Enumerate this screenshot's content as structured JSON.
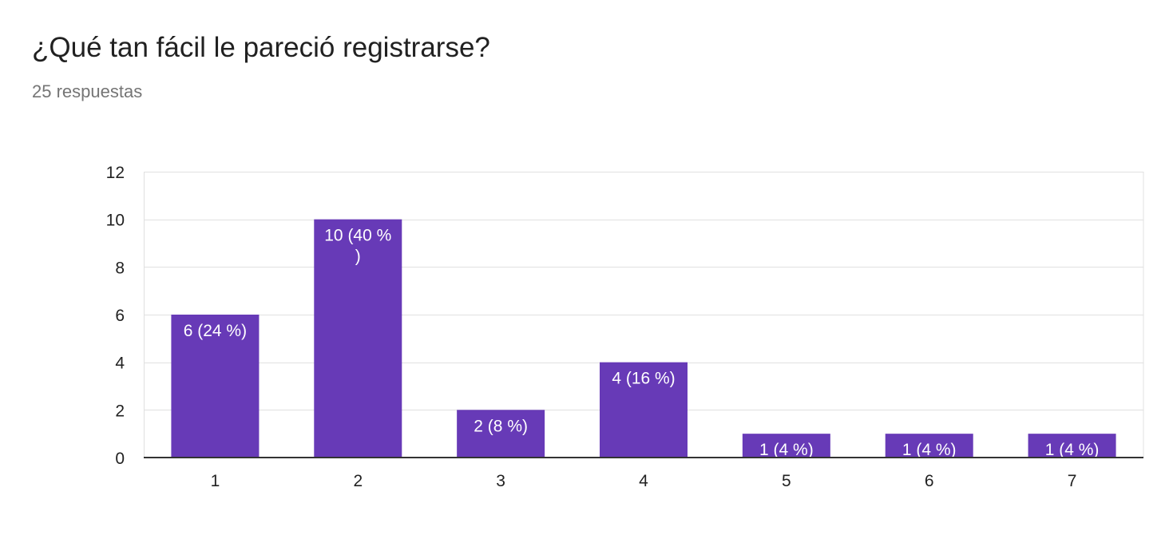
{
  "header": {
    "title": "¿Qué tan fácil le pareció registrarse?",
    "subtitle": "25 respuestas"
  },
  "colors": {
    "bar": "#673ab7",
    "grid": "#e0e0e0",
    "axis": "#333333"
  },
  "chart_data": {
    "type": "bar",
    "categories": [
      "1",
      "2",
      "3",
      "4",
      "5",
      "6",
      "7"
    ],
    "values": [
      6,
      10,
      2,
      4,
      1,
      1,
      1
    ],
    "data_labels": [
      [
        "6 (24 %)"
      ],
      [
        "10 (40 %",
        ")"
      ],
      [
        "2 (8 %)"
      ],
      [
        "4 (16 %)"
      ],
      [
        "1 (4 %)"
      ],
      [
        "1 (4 %)"
      ],
      [
        "1 (4 %)"
      ]
    ],
    "ylim": [
      0,
      12
    ],
    "yticks": [
      0,
      2,
      4,
      6,
      8,
      10,
      12
    ],
    "grid": true,
    "legend": "none"
  }
}
